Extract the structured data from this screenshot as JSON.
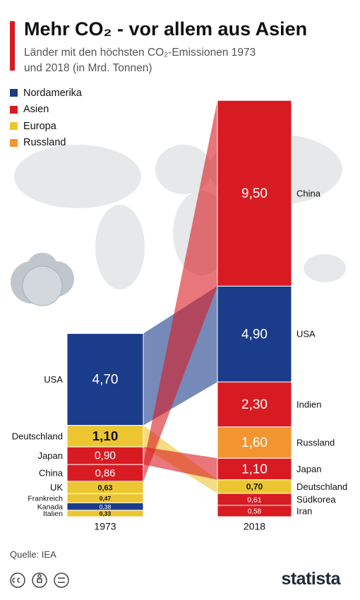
{
  "chart_data": {
    "type": "flow",
    "title": "Mehr CO₂ - vor allem aus Asien",
    "subtitle": "Länder mit den höchsten CO₂-Emissionen 1973 und 2018 (in Mrd. Tonnen)",
    "legend": [
      {
        "name": "Nordamerika",
        "color": "#1b3c8a"
      },
      {
        "name": "Asien",
        "color": "#d81b22"
      },
      {
        "name": "Europa",
        "color": "#ecc631"
      },
      {
        "name": "Russland",
        "color": "#f29531"
      }
    ],
    "columns": [
      {
        "label": "1973",
        "categories": [
          "USA",
          "Deutschland",
          "Japan",
          "China",
          "UK",
          "Frankreich",
          "Kanada",
          "Italien"
        ],
        "values": [
          4.7,
          1.1,
          0.9,
          0.86,
          0.63,
          0.47,
          0.38,
          0.33
        ],
        "value_labels": [
          "4,70",
          "1,10",
          "0,90",
          "0,86",
          "0,63",
          "0,47",
          "0,38",
          "0,33"
        ],
        "colors": [
          "#1b3c8a",
          "#ecc631",
          "#d81b22",
          "#d81b22",
          "#ecc631",
          "#ecc631",
          "#1b3c8a",
          "#ecc631"
        ]
      },
      {
        "label": "2018",
        "categories": [
          "China",
          "USA",
          "Indien",
          "Russland",
          "Japan",
          "Deutschland",
          "Südkorea",
          "Iran"
        ],
        "values": [
          9.5,
          4.9,
          2.3,
          1.6,
          1.1,
          0.7,
          0.61,
          0.58
        ],
        "value_labels": [
          "9,50",
          "4,90",
          "2,30",
          "1,60",
          "1,10",
          "0,70",
          "0,61",
          "0,58"
        ],
        "colors": [
          "#d81b22",
          "#1b3c8a",
          "#d81b22",
          "#f29531",
          "#d81b22",
          "#ecc631",
          "#d81b22",
          "#d81b22"
        ]
      }
    ],
    "source": "Quelle: IEA",
    "brand": "statista"
  }
}
